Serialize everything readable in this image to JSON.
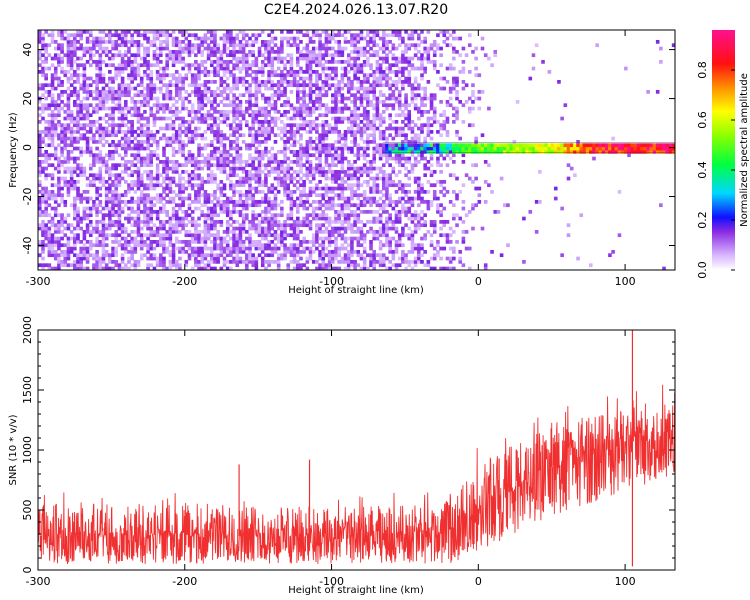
{
  "figure_title": "C2E4.2024.026.13.07.R20",
  "chart_data": [
    {
      "type": "heatmap",
      "title": "",
      "xlabel": "Height of straight line (km)",
      "ylabel": "Frequency (Hz)",
      "xlim": [
        -300,
        134
      ],
      "ylim": [
        -50,
        48
      ],
      "x_ticks": [
        -300,
        -200,
        -100,
        0,
        100
      ],
      "x_tick_labels": [
        "-300",
        "-200",
        "-100",
        "0",
        "100"
      ],
      "y_ticks": [
        -40,
        -20,
        0,
        20,
        40
      ],
      "y_tick_labels": [
        "-40",
        "-20",
        "0",
        "20",
        "40"
      ],
      "colorbar": {
        "label": "Normalized spectral amplitude",
        "range": [
          0,
          0.96
        ],
        "ticks": [
          0.0,
          0.2,
          0.4,
          0.6,
          0.8
        ],
        "tick_labels": [
          "0.0",
          "0.2",
          "0.4",
          "0.6",
          "0.8"
        ],
        "colormap": "rainbow (white-purple-blue-cyan-green-yellow-orange-red-magenta)"
      },
      "features": {
        "noise_region_x": [
          -300,
          -65
        ],
        "noise_amplitude": 0.15,
        "transition_x": [
          -65,
          10
        ],
        "signal_line_x": [
          -65,
          134
        ],
        "signal_frequency_hz": 0,
        "signal_bandwidth_hz": 2,
        "signal_amplitude": [
          {
            "x": -65,
            "value": 0.3
          },
          {
            "x": -30,
            "value": 0.35
          },
          {
            "x": 0,
            "value": 0.5
          },
          {
            "x": 50,
            "value": 0.6
          },
          {
            "x": 80,
            "value": 0.85
          },
          {
            "x": 134,
            "value": 0.85
          }
        ]
      },
      "grid": false
    },
    {
      "type": "line",
      "title": "",
      "xlabel": "Height of straight line (km)",
      "ylabel": "SNR (10 * v/v)",
      "xlim": [
        -300,
        134
      ],
      "ylim": [
        0,
        2000
      ],
      "x_ticks": [
        -300,
        -200,
        -100,
        0,
        100
      ],
      "x_tick_labels": [
        "-300",
        "-200",
        "-100",
        "0",
        "100"
      ],
      "y_ticks": [
        0,
        500,
        1000,
        1500,
        2000
      ],
      "y_tick_labels": [
        "0",
        "500",
        "1000",
        "1500",
        "2000"
      ],
      "series_color": "#f03030",
      "envelope": {
        "x": [
          -300,
          -200,
          -100,
          -20,
          0,
          50,
          100,
          134
        ],
        "mean": [
          280,
          290,
          270,
          300,
          500,
          850,
          1050,
          1150
        ],
        "upper": [
          550,
          560,
          520,
          560,
          900,
          1200,
          1400,
          1500
        ],
        "lower": [
          50,
          50,
          50,
          50,
          150,
          450,
          650,
          800
        ]
      },
      "spikes": [
        {
          "x": -163,
          "value": 880
        },
        {
          "x": -115,
          "value": 920
        },
        {
          "x": 105,
          "value": 2000
        },
        {
          "x": 105,
          "value": 30
        }
      ],
      "grid": false
    }
  ]
}
